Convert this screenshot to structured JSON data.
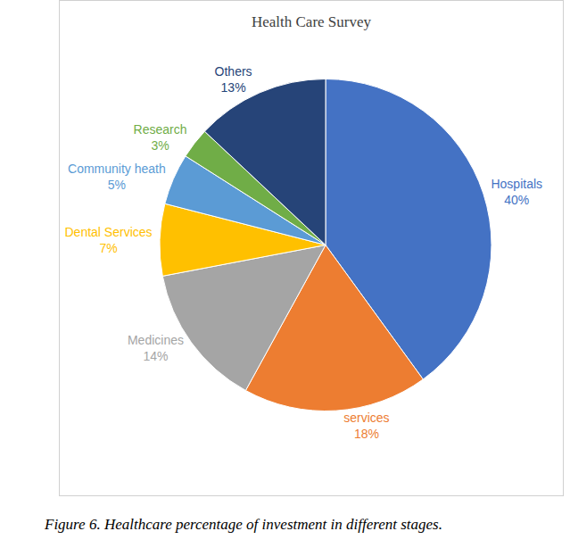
{
  "chart_data": {
    "type": "pie",
    "title": "Health Care Survey",
    "categories": [
      "Hospitals",
      "services",
      "Medicines",
      "Dental Services",
      "Community heath",
      "Research",
      "Others"
    ],
    "values": [
      40,
      18,
      14,
      7,
      5,
      3,
      13
    ],
    "value_labels": [
      "40%",
      "18%",
      "14%",
      "7%",
      "5%",
      "3%",
      "13%"
    ],
    "colors": [
      "#4472c4",
      "#ed7d31",
      "#a5a5a5",
      "#ffc000",
      "#5b9bd5",
      "#70ad47",
      "#264478"
    ],
    "data_labels": true,
    "caption": "Figure 6. Healthcare percentage of investment in different stages."
  }
}
